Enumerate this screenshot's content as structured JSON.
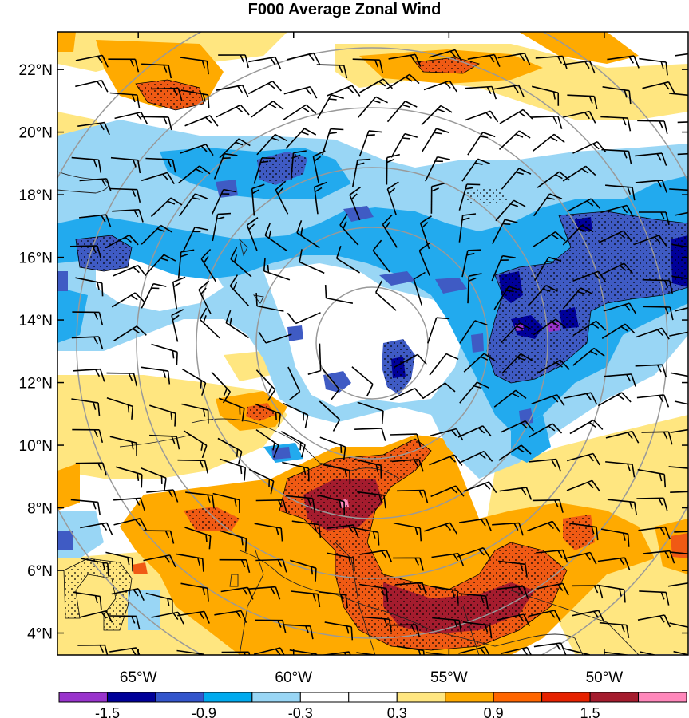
{
  "title": "F000 Average Zonal Wind",
  "map": {
    "lat_labels": [
      "22°N",
      "20°N",
      "18°N",
      "16°N",
      "14°N",
      "12°N",
      "10°N",
      "8°N",
      "6°N",
      "4°N"
    ],
    "lon_labels": [
      "65°W",
      "60°W",
      "55°W",
      "50°W"
    ],
    "lat_ticks": [
      22,
      20,
      18,
      16,
      14,
      12,
      10,
      8,
      6,
      4
    ],
    "lon_ticks": [
      -65,
      -60,
      -55,
      -50
    ],
    "extent": {
      "lon_min": -67.6,
      "lon_max": -47.3,
      "lat_min": 3.3,
      "lat_max": 23.2
    },
    "range_rings": "concentric gray circles centered near 56.5°W, 13.5°N"
  },
  "colorbar": {
    "labels": [
      "-1.5",
      "-0.9",
      "-0.3",
      "0.3",
      "0.9",
      "1.5"
    ],
    "colors": [
      "#9933cc",
      "#000099",
      "#3355cc",
      "#00aaee",
      "#99d6f5",
      "#ffffff",
      "#ffffff",
      "#ffe680",
      "#ffaa00",
      "#ff6600",
      "#e62200",
      "#a51c2e",
      "#ff88bb"
    ]
  },
  "palette": {
    "neg_light": "#99d6f5",
    "neg_mid": "#22aaee",
    "neg_dark": "#3f5bc4",
    "neg_darkest": "#000099",
    "neg_purple": "#9933cc",
    "pos_light": "#ffe680",
    "pos_mid": "#ffaa00",
    "pos_strong": "#f05a14",
    "pos_dark": "#a51c2e"
  }
}
